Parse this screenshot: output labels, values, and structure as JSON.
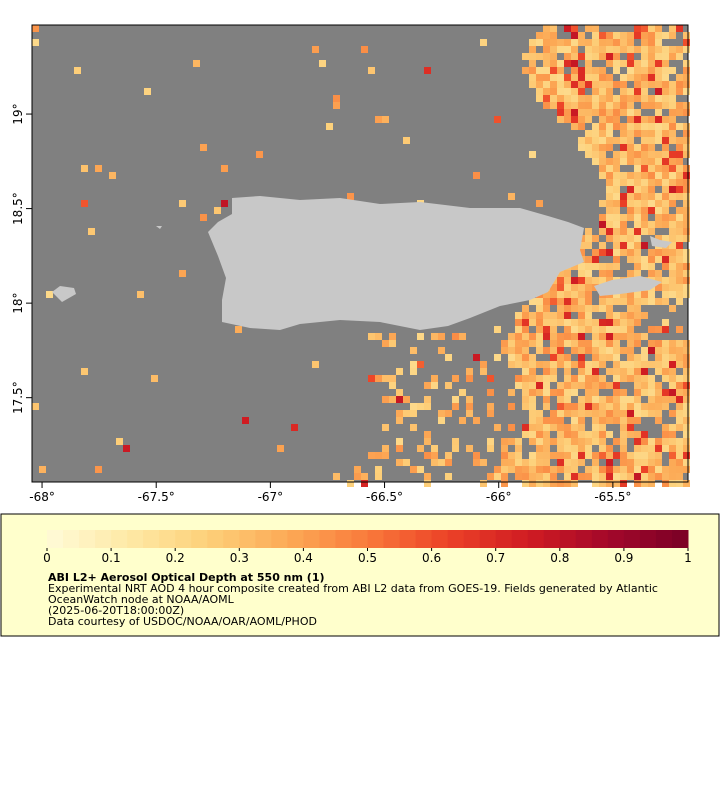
{
  "chart_data": {
    "type": "map",
    "xlim": [
      -68.044,
      -65.171
    ],
    "ylim": [
      17.054,
      19.471
    ],
    "xticks": [
      {
        "value": -68,
        "label": "-68°"
      },
      {
        "value": -67.5,
        "label": "-67.5°"
      },
      {
        "value": -67,
        "label": "-67°"
      },
      {
        "value": -66.5,
        "label": "-66.5°"
      },
      {
        "value": -66,
        "label": "-66°"
      },
      {
        "value": -65.5,
        "label": "-65.5°"
      }
    ],
    "yticks": [
      {
        "value": 17.5,
        "label": "17.5°"
      },
      {
        "value": 18,
        "label": "18°"
      },
      {
        "value": 18.5,
        "label": "18.5°"
      },
      {
        "value": 19,
        "label": "19°"
      }
    ],
    "colorbar": {
      "lim": [
        0,
        1
      ],
      "ticks": [
        0,
        0.1,
        0.2,
        0.3,
        0.4,
        0.5,
        0.6,
        0.7,
        0.8,
        0.9,
        1
      ],
      "colormap": [
        "#fffbd8",
        "#fee9a6",
        "#fdd07a",
        "#fcaa56",
        "#f97a3b",
        "#ec4227",
        "#d01c22",
        "#a3082a",
        "#7a0026"
      ]
    },
    "title": "ABI L2+ Aerosol Optical Depth at 550 nm (1)",
    "description": [
      "Experimental NRT AOD 4 hour composite created from ABI L2 data from GOES-19. Fields generated by Atlantic",
      "OceanWatch node at NOAA/AOML",
      "(2025-06-20T18:00:00Z)",
      "Data courtesy of USDOC/NOAA/OAR/AOML/PHOD"
    ]
  }
}
